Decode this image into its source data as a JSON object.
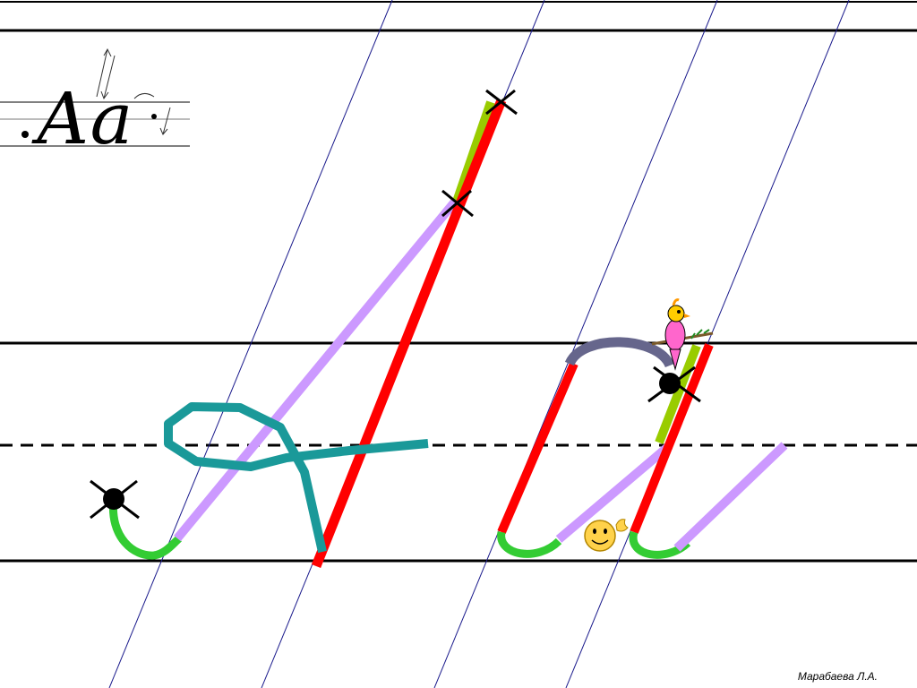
{
  "slide": {
    "sample_letters": "Аа",
    "author": "Марабаева Л.А."
  },
  "colors": {
    "ruling_line": "#000000",
    "slant_line": "#1a1a8c",
    "main_stroke": "#ff0000",
    "connector_stroke": "#cc99ff",
    "hook_stroke": "#33cc33",
    "loop_stroke": "#1a9999",
    "arc_stroke": "#66668c",
    "start_stroke": "#99cc00"
  },
  "icons": [
    "cross-mark-icon",
    "start-dot-icon",
    "bird-icon",
    "smiley-icon"
  ]
}
